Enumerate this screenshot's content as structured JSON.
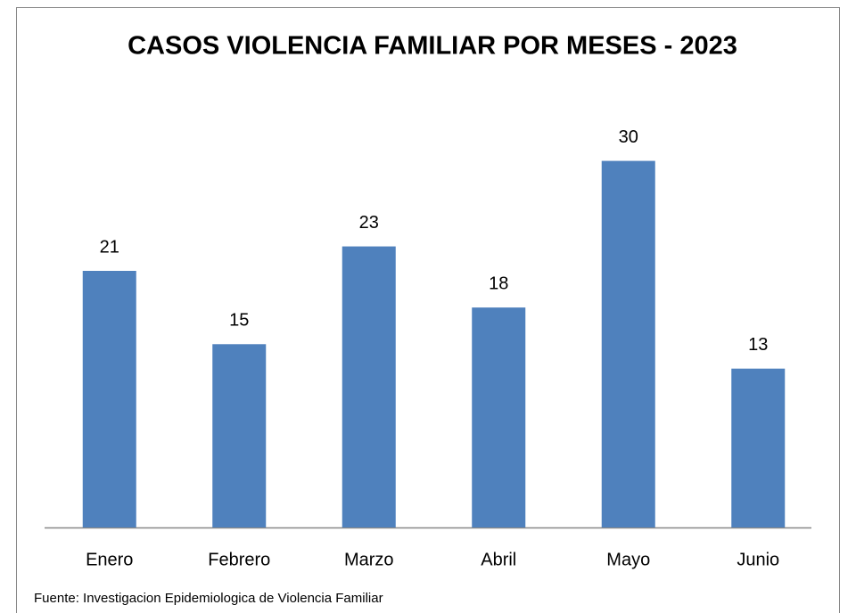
{
  "chart_data": {
    "type": "bar",
    "title": "CASOS VIOLENCIA FAMILIAR POR MESES - 2023",
    "categories": [
      "Enero",
      "Febrero",
      "Marzo",
      "Abril",
      "Mayo",
      "Junio"
    ],
    "values": [
      21,
      15,
      23,
      18,
      30,
      13
    ],
    "color": "#4f81bd",
    "ylim": [
      0,
      35
    ],
    "source": "Fuente: Investigacion  Epidemiologica  de Violencia Familiar"
  }
}
